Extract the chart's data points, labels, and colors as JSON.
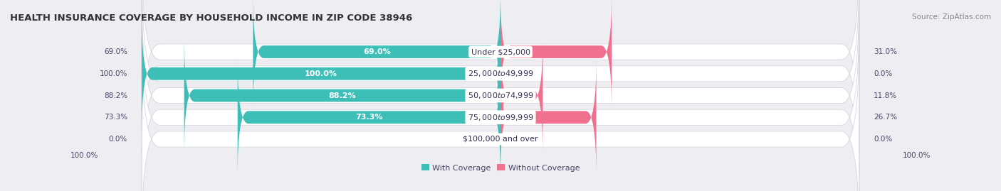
{
  "title": "HEALTH INSURANCE COVERAGE BY HOUSEHOLD INCOME IN ZIP CODE 38946",
  "source": "Source: ZipAtlas.com",
  "categories": [
    "Under $25,000",
    "$25,000 to $49,999",
    "$50,000 to $74,999",
    "$75,000 to $99,999",
    "$100,000 and over"
  ],
  "with_coverage": [
    69.0,
    100.0,
    88.2,
    73.3,
    0.0
  ],
  "without_coverage": [
    31.0,
    0.0,
    11.8,
    26.7,
    0.0
  ],
  "color_coverage": "#3dbfb8",
  "color_without": "#f07090",
  "color_without_pale": "#f5b8c8",
  "bg_color": "#eeeef2",
  "bar_bg": "#ffffff",
  "title_fontsize": 9.5,
  "source_fontsize": 7.5,
  "label_fontsize": 8,
  "category_fontsize": 8,
  "outside_label_fontsize": 7.5
}
